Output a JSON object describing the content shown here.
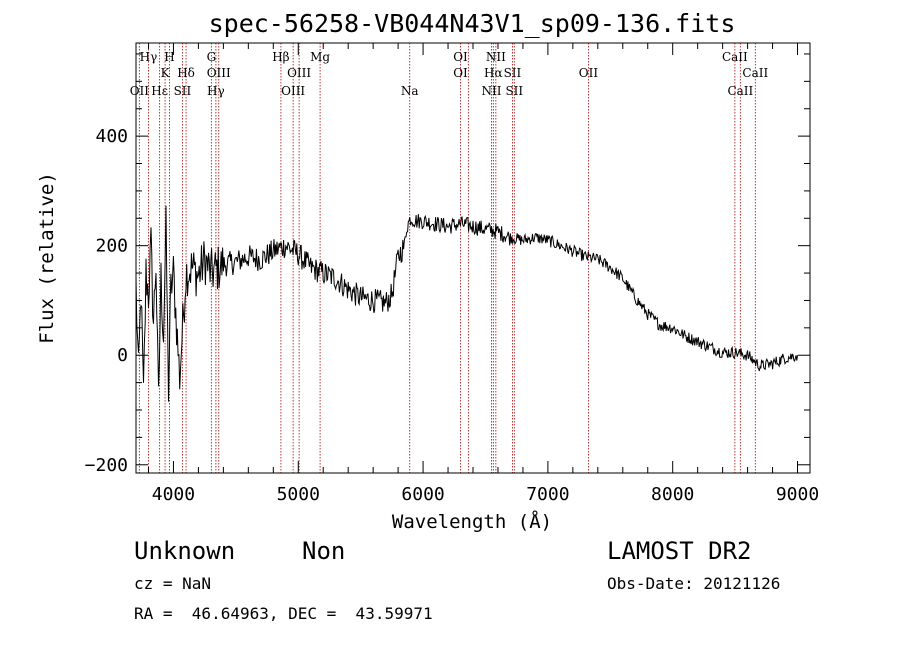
{
  "chart_data": {
    "type": "line",
    "title": "spec-56258-VB044N43V1_sp09-136.fits",
    "xlabel": "Wavelength (Å)",
    "ylabel": "Flux (relative)",
    "xlim": [
      3700,
      9100
    ],
    "ylim": [
      -215,
      570
    ],
    "x_ticks": [
      4000,
      5000,
      6000,
      7000,
      8000,
      9000
    ],
    "y_ticks": [
      -200,
      0,
      200,
      400
    ],
    "x_tick_labels": [
      "4000",
      "5000",
      "6000",
      "7000",
      "8000",
      "9000"
    ],
    "y_tick_labels": [
      "−200",
      "0",
      "200",
      "400"
    ],
    "grid": false,
    "series": [
      {
        "name": "",
        "color": "#000000",
        "x": [
          3700,
          3720,
          3740,
          3760,
          3780,
          3800,
          3820,
          3840,
          3860,
          3880,
          3900,
          3920,
          3940,
          3960,
          3980,
          4000,
          4050,
          4100,
          4150,
          4200,
          4250,
          4300,
          4400,
          4500,
          4600,
          4700,
          4800,
          4900,
          5000,
          5100,
          5200,
          5300,
          5400,
          5500,
          5600,
          5700,
          5750,
          5800,
          5850,
          5870,
          5900,
          5950,
          6000,
          6100,
          6200,
          6300,
          6400,
          6500,
          6560,
          6600,
          6700,
          6800,
          6900,
          7000,
          7100,
          7200,
          7300,
          7400,
          7500,
          7600,
          7700,
          7800,
          7900,
          8000,
          8100,
          8200,
          8300,
          8400,
          8500,
          8600,
          8700,
          8800,
          8900,
          9000
        ],
        "y": [
          130,
          -40,
          120,
          -80,
          150,
          110,
          200,
          60,
          170,
          -90,
          140,
          40,
          230,
          -60,
          120,
          150,
          -40,
          150,
          160,
          145,
          175,
          150,
          165,
          170,
          180,
          175,
          190,
          200,
          185,
          160,
          150,
          140,
          120,
          105,
          100,
          95,
          110,
          180,
          200,
          235,
          250,
          245,
          245,
          240,
          235,
          240,
          235,
          230,
          228,
          225,
          215,
          210,
          215,
          210,
          200,
          190,
          180,
          175,
          160,
          140,
          105,
          75,
          55,
          50,
          35,
          25,
          15,
          5,
          5,
          0,
          -20,
          -15,
          -5,
          0
        ]
      }
    ],
    "line_labels": {
      "top": [
        {
          "text": "Hγ",
          "x": 3800
        },
        {
          "text": "H",
          "x": 3968
        },
        {
          "text": "G",
          "x": 4304
        },
        {
          "text": "Hβ",
          "x": 4861
        },
        {
          "text": "Mg",
          "x": 5175
        },
        {
          "text": "OI",
          "x": 6300
        },
        {
          "text": "NII",
          "x": 6583
        },
        {
          "text": "CaII",
          "x": 8498
        }
      ],
      "middle": [
        {
          "text": "K",
          "x": 3933
        },
        {
          "text": "Hδ",
          "x": 4101
        },
        {
          "text": "OIII",
          "x": 4363
        },
        {
          "text": "OIII",
          "x": 5007
        },
        {
          "text": "OI",
          "x": 6300
        },
        {
          "text": "Hα",
          "x": 6563
        },
        {
          "text": "SII",
          "x": 6716
        },
        {
          "text": "OII",
          "x": 7325
        },
        {
          "text": "CaII",
          "x": 8662
        }
      ],
      "bottom": [
        {
          "text": "OII",
          "x": 3727
        },
        {
          "text": "Hε",
          "x": 3889
        },
        {
          "text": "SII",
          "x": 4072
        },
        {
          "text": "Hγ",
          "x": 4340
        },
        {
          "text": "OIII",
          "x": 4959
        },
        {
          "text": "Na",
          "x": 5893
        },
        {
          "text": "NII",
          "x": 6548
        },
        {
          "text": "SII",
          "x": 6731
        },
        {
          "text": "CaII",
          "x": 8542
        }
      ]
    },
    "line_markers_x": [
      3727,
      3800,
      3889,
      3933,
      3968,
      4072,
      4101,
      4304,
      4340,
      4363,
      4861,
      4959,
      5007,
      5175,
      5893,
      6300,
      6363,
      6548,
      6563,
      6583,
      6716,
      6731,
      7325,
      8498,
      8542,
      8662
    ],
    "marker_color": "#b22222"
  },
  "footer": {
    "object_class": "Unknown",
    "object_subclass": "Non",
    "survey": "LAMOST DR2",
    "cz": "cz = NaN",
    "obs_date": "Obs-Date: 20121126",
    "coords": "RA =  46.64963, DEC =  43.59971"
  }
}
